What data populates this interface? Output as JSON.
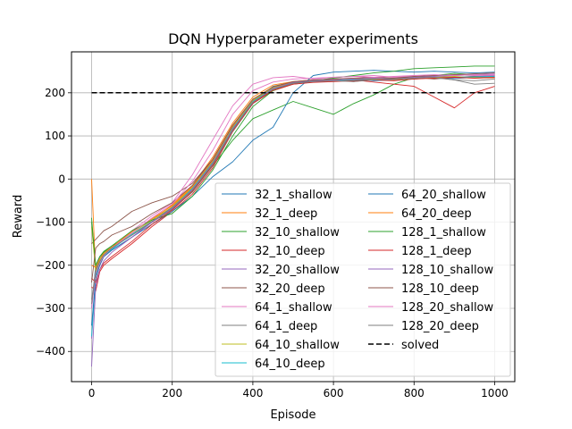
{
  "chart_data": {
    "type": "line",
    "title": "DQN Hyperparameter experiments",
    "xlabel": "Episode",
    "ylabel": "Reward",
    "xlim": [
      -50,
      1050
    ],
    "ylim": [
      -470,
      295
    ],
    "xticks": [
      0,
      200,
      400,
      600,
      800,
      1000
    ],
    "yticks": [
      -400,
      -300,
      -200,
      -100,
      0,
      100,
      200
    ],
    "grid": true,
    "legend": {
      "placement": "lower-right",
      "columns": 2
    },
    "x": [
      0,
      10,
      20,
      30,
      50,
      100,
      150,
      200,
      250,
      300,
      350,
      400,
      450,
      500,
      550,
      600,
      650,
      700,
      750,
      800,
      850,
      900,
      950,
      1000
    ],
    "series": [
      {
        "name": "32_1_shallow",
        "color": "#1f77b4",
        "style": "solid",
        "values": [
          -300,
          -200,
          -180,
          -170,
          -160,
          -130,
          -100,
          -65,
          -20,
          40,
          120,
          180,
          215,
          225,
          228,
          230,
          232,
          228,
          230,
          232,
          235,
          233,
          236,
          238
        ]
      },
      {
        "name": "32_1_deep",
        "color": "#ff7f0e",
        "style": "solid",
        "values": [
          0,
          -220,
          -190,
          -175,
          -160,
          -125,
          -95,
          -60,
          -15,
          50,
          130,
          190,
          218,
          226,
          230,
          228,
          232,
          234,
          230,
          235,
          233,
          237,
          236,
          235
        ]
      },
      {
        "name": "32_10_shallow",
        "color": "#2ca02c",
        "style": "solid",
        "values": [
          -90,
          -210,
          -185,
          -170,
          -155,
          -130,
          -100,
          -70,
          -30,
          30,
          90,
          140,
          160,
          180,
          165,
          150,
          175,
          195,
          220,
          235,
          240,
          245,
          242,
          240
        ]
      },
      {
        "name": "32_10_deep",
        "color": "#d62728",
        "style": "solid",
        "values": [
          -250,
          -260,
          -215,
          -200,
          -185,
          -150,
          -110,
          -75,
          -35,
          25,
          110,
          175,
          205,
          220,
          225,
          228,
          230,
          225,
          220,
          215,
          190,
          165,
          200,
          215
        ]
      },
      {
        "name": "32_20_shallow",
        "color": "#9467bd",
        "style": "solid",
        "values": [
          -370,
          -230,
          -200,
          -180,
          -165,
          -135,
          -100,
          -70,
          -25,
          35,
          115,
          180,
          210,
          222,
          226,
          228,
          230,
          232,
          230,
          234,
          236,
          235,
          238,
          240
        ]
      },
      {
        "name": "32_20_deep",
        "color": "#8c564b",
        "style": "solid",
        "values": [
          -150,
          -140,
          -130,
          -120,
          -110,
          -75,
          -55,
          -40,
          -10,
          45,
          125,
          185,
          212,
          224,
          228,
          230,
          226,
          232,
          234,
          236,
          232,
          236,
          238,
          236
        ]
      },
      {
        "name": "64_1_shallow",
        "color": "#e377c2",
        "style": "solid",
        "values": [
          -290,
          -230,
          -200,
          -180,
          -160,
          -120,
          -85,
          -55,
          10,
          90,
          170,
          220,
          235,
          238,
          232,
          236,
          238,
          240,
          236,
          238,
          240,
          242,
          240,
          241
        ]
      },
      {
        "name": "64_1_deep",
        "color": "#7f7f7f",
        "style": "solid",
        "values": [
          -280,
          -210,
          -190,
          -175,
          -160,
          -130,
          -100,
          -70,
          -30,
          30,
          110,
          175,
          208,
          222,
          226,
          230,
          228,
          232,
          230,
          233,
          235,
          230,
          220,
          222
        ]
      },
      {
        "name": "64_10_shallow",
        "color": "#bcbd22",
        "style": "solid",
        "values": [
          -110,
          -215,
          -190,
          -175,
          -160,
          -125,
          -95,
          -65,
          -20,
          40,
          120,
          182,
          212,
          224,
          228,
          230,
          232,
          234,
          232,
          234,
          236,
          238,
          235,
          236
        ]
      },
      {
        "name": "64_10_deep",
        "color": "#17becf",
        "style": "solid",
        "values": [
          -365,
          -225,
          -195,
          -178,
          -163,
          -128,
          -98,
          -68,
          -22,
          38,
          118,
          180,
          210,
          222,
          226,
          228,
          230,
          232,
          231,
          233,
          235,
          236,
          237,
          238
        ]
      },
      {
        "name": "64_20_shallow",
        "color": "#1f77b4",
        "style": "solid",
        "values": [
          -340,
          -230,
          -200,
          -180,
          -165,
          -135,
          -105,
          -75,
          -40,
          5,
          40,
          90,
          120,
          200,
          240,
          248,
          250,
          252,
          250,
          248,
          250,
          248,
          246,
          248
        ]
      },
      {
        "name": "64_20_deep",
        "color": "#ff7f0e",
        "style": "solid",
        "values": [
          -200,
          -205,
          -185,
          -172,
          -158,
          -122,
          -92,
          -62,
          -18,
          42,
          122,
          184,
          214,
          224,
          228,
          230,
          232,
          233,
          231,
          234,
          235,
          236,
          234,
          235
        ]
      },
      {
        "name": "128_1_shallow",
        "color": "#2ca02c",
        "style": "solid",
        "values": [
          -100,
          -200,
          -180,
          -168,
          -155,
          -120,
          -95,
          -80,
          -40,
          20,
          100,
          168,
          205,
          222,
          228,
          234,
          240,
          246,
          250,
          256,
          258,
          260,
          262,
          262
        ]
      },
      {
        "name": "128_1_deep",
        "color": "#d62728",
        "style": "solid",
        "values": [
          -230,
          -240,
          -210,
          -195,
          -180,
          -145,
          -105,
          -72,
          -28,
          32,
          112,
          176,
          206,
          220,
          224,
          226,
          228,
          230,
          228,
          232,
          234,
          236,
          234,
          236
        ]
      },
      {
        "name": "128_10_shallow",
        "color": "#9467bd",
        "style": "solid",
        "values": [
          -435,
          -250,
          -210,
          -190,
          -170,
          -135,
          -100,
          -68,
          -24,
          36,
          116,
          178,
          210,
          224,
          228,
          230,
          232,
          234,
          232,
          236,
          238,
          240,
          242,
          244
        ]
      },
      {
        "name": "128_10_deep",
        "color": "#8c564b",
        "style": "solid",
        "values": [
          -240,
          -160,
          -150,
          -145,
          -130,
          -110,
          -80,
          -55,
          -15,
          45,
          125,
          185,
          214,
          226,
          230,
          232,
          234,
          236,
          234,
          238,
          240,
          242,
          244,
          246
        ]
      },
      {
        "name": "128_20_shallow",
        "color": "#e377c2",
        "style": "solid",
        "values": [
          -300,
          -220,
          -195,
          -178,
          -160,
          -125,
          -90,
          -58,
          -5,
          65,
          150,
          205,
          225,
          232,
          234,
          236,
          238,
          236,
          238,
          240,
          242,
          240,
          242,
          243
        ]
      },
      {
        "name": "128_20_deep",
        "color": "#7f7f7f",
        "style": "solid",
        "values": [
          -290,
          -215,
          -192,
          -176,
          -160,
          -130,
          -98,
          -66,
          -26,
          34,
          114,
          178,
          208,
          222,
          226,
          228,
          226,
          230,
          232,
          234,
          236,
          230,
          228,
          232
        ]
      },
      {
        "name": "solved",
        "color": "#000000",
        "style": "dashed",
        "values": [
          200,
          200,
          200,
          200,
          200,
          200,
          200,
          200,
          200,
          200,
          200,
          200,
          200,
          200,
          200,
          200,
          200,
          200,
          200,
          200,
          200,
          200,
          200,
          200
        ]
      }
    ]
  }
}
